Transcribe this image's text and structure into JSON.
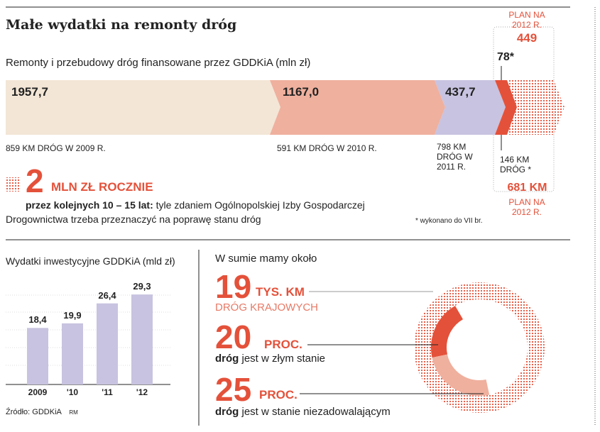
{
  "title": "Małe wydatki na remonty dróg",
  "top": {
    "subtitle": "Remonty i przebudowy dróg finansowane przez GDDKiA (mln zł)",
    "segments": [
      {
        "value": "1957,7",
        "label": "859 KM DRÓG W 2009 R."
      },
      {
        "value": "1167,0",
        "label": "591 KM DRÓG W 2010 R."
      },
      {
        "value": "437,7",
        "label": "798 KM DRÓG W 2011 R."
      },
      {
        "value": "78*",
        "label": "146 KM DRÓG *"
      }
    ],
    "plan_value_label": "PLAN NA 2012 R.",
    "plan_value": "449",
    "plan_km": "681 KM",
    "plan_km_label": "PLAN NA 2012 R.",
    "highlight_number": "2",
    "highlight_unit": "MLN ZŁ ROCZNIE",
    "highlight_bold": "przez kolejnych 10 – 15 lat:",
    "highlight_text": " tyle zdaniem Ogólnopolskiej Izby Gospodarczej Drogownictwa trzeba przeznaczyć na poprawę stanu dróg",
    "footnote": "* wykonano do VII br."
  },
  "chart_data": {
    "type": "bar",
    "title": "Wydatki inwestycyjne GDDKiA (mld zł)",
    "categories": [
      "2009",
      "'10",
      "'11",
      "'12"
    ],
    "values": [
      18.4,
      19.9,
      26.4,
      29.3
    ],
    "value_labels": [
      "18,4",
      "19,9",
      "26,4",
      "29,3"
    ],
    "color": "#c8c3e0",
    "grid": true
  },
  "source": "Źródło: GDDKiA",
  "author": "RM",
  "summary": {
    "intro": "W sumie mamy około",
    "items": [
      {
        "number": "19",
        "unit": "TYS. KM",
        "text": "DRÓG KRAJOWYCH"
      },
      {
        "number": "20",
        "unit": "PROC.",
        "bold": "dróg",
        "text": " jest w złym stanie"
      },
      {
        "number": "25",
        "unit": "PROC.",
        "bold": "dróg",
        "text": " jest w stanie niezadowalającym"
      }
    ],
    "ring": {
      "bad_percent": 20,
      "poor_percent": 25,
      "colors": {
        "bad": "#e4513a",
        "poor": "#efb09e"
      }
    }
  },
  "colors": {
    "accent": "#e4513a",
    "beige": "#f3e6d6",
    "salmon": "#efb09e",
    "lavender": "#c8c3e0"
  }
}
